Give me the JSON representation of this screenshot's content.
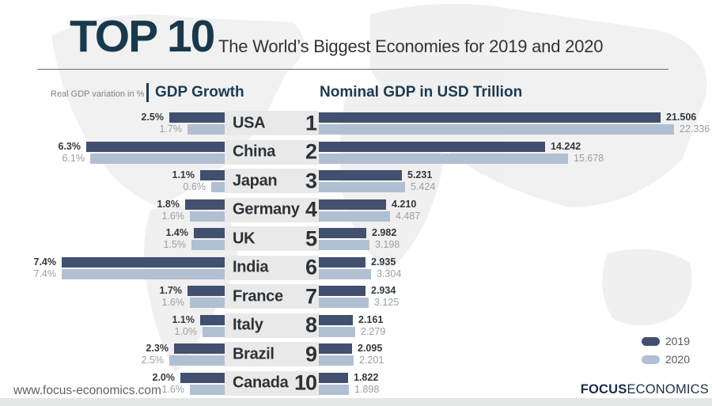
{
  "header": {
    "title": "TOP 10",
    "subtitle": "The World’s Biggest Economies for 2019 and 2020"
  },
  "panels": {
    "growth_note": "Real GDP variation in %",
    "growth_title": "GDP Growth",
    "gdp_title": "Nominal GDP in USD Trillion"
  },
  "legend": {
    "items": [
      {
        "label": "2019",
        "color": "#41506f"
      },
      {
        "label": "2020",
        "color": "#b1bfd3"
      }
    ]
  },
  "footer": {
    "website": "www.focus-economics.com",
    "logo_bold": "FOCUS",
    "logo_light": "ECONOMICS"
  },
  "colors": {
    "bar_2019": "#41506f",
    "bar_2020": "#b1bfd3",
    "title_navy": "#17394b",
    "section_header": "#1d3b50",
    "row_stripe": "#e9e9e9",
    "value_2019": "#33383d",
    "value_2020": "#9aa0a6"
  },
  "chart_data": {
    "type": "bar",
    "title": "TOP 10 — The World’s Biggest Economies for 2019 and 2020",
    "panels": [
      {
        "name": "GDP Growth",
        "unit": "Real GDP variation in %",
        "orientation": "horizontal, right-aligned"
      },
      {
        "name": "Nominal GDP in USD Trillion",
        "unit": "USD trillion",
        "orientation": "horizontal, left-aligned"
      }
    ],
    "series_names": [
      "2019",
      "2020"
    ],
    "legend_position": "bottom-right",
    "grid": false,
    "rows": [
      {
        "rank": "1",
        "country": "USA",
        "growth_2019": 2.5,
        "growth_2019_label": "2.5%",
        "growth_2020": 1.7,
        "growth_2020_label": "1.7%",
        "gdp_2019": 21.506,
        "gdp_2019_label": "21.506",
        "gdp_2020": 22.336,
        "gdp_2020_label": "22.336"
      },
      {
        "rank": "2",
        "country": "China",
        "growth_2019": 6.3,
        "growth_2019_label": "6.3%",
        "growth_2020": 6.1,
        "growth_2020_label": "6.1%",
        "gdp_2019": 14.242,
        "gdp_2019_label": "14.242",
        "gdp_2020": 15.678,
        "gdp_2020_label": "15.678"
      },
      {
        "rank": "3",
        "country": "Japan",
        "growth_2019": 1.1,
        "growth_2019_label": "1.1%",
        "growth_2020": 0.6,
        "growth_2020_label": "0.6%",
        "gdp_2019": 5.231,
        "gdp_2019_label": "5.231",
        "gdp_2020": 5.424,
        "gdp_2020_label": "5.424"
      },
      {
        "rank": "4",
        "country": "Germany",
        "growth_2019": 1.8,
        "growth_2019_label": "1.8%",
        "growth_2020": 1.6,
        "growth_2020_label": "1.6%",
        "gdp_2019": 4.21,
        "gdp_2019_label": "4.210",
        "gdp_2020": 4.487,
        "gdp_2020_label": "4.487"
      },
      {
        "rank": "5",
        "country": "UK",
        "growth_2019": 1.4,
        "growth_2019_label": "1.4%",
        "growth_2020": 1.5,
        "growth_2020_label": "1.5%",
        "gdp_2019": 2.982,
        "gdp_2019_label": "2.982",
        "gdp_2020": 3.198,
        "gdp_2020_label": "3.198"
      },
      {
        "rank": "6",
        "country": "India",
        "growth_2019": 7.4,
        "growth_2019_label": "7.4%",
        "growth_2020": 7.4,
        "growth_2020_label": "7.4%",
        "gdp_2019": 2.935,
        "gdp_2019_label": "2.935",
        "gdp_2020": 3.304,
        "gdp_2020_label": "3.304"
      },
      {
        "rank": "7",
        "country": "France",
        "growth_2019": 1.7,
        "growth_2019_label": "1.7%",
        "growth_2020": 1.6,
        "growth_2020_label": "1.6%",
        "gdp_2019": 2.934,
        "gdp_2019_label": "2.934",
        "gdp_2020": 3.125,
        "gdp_2020_label": "3.125"
      },
      {
        "rank": "8",
        "country": "Italy",
        "growth_2019": 1.1,
        "growth_2019_label": "1.1%",
        "growth_2020": 1.0,
        "growth_2020_label": "1.0%",
        "gdp_2019": 2.161,
        "gdp_2019_label": "2.161",
        "gdp_2020": 2.279,
        "gdp_2020_label": "2.279"
      },
      {
        "rank": "9",
        "country": "Brazil",
        "growth_2019": 2.3,
        "growth_2019_label": "2.3%",
        "growth_2020": 2.5,
        "growth_2020_label": "2.5%",
        "gdp_2019": 2.095,
        "gdp_2019_label": "2.095",
        "gdp_2020": 2.201,
        "gdp_2020_label": "2.201"
      },
      {
        "rank": "10",
        "country": "Canada",
        "growth_2019": 2.0,
        "growth_2019_label": "2.0%",
        "growth_2020": 1.6,
        "growth_2020_label": "1.6%",
        "gdp_2019": 1.822,
        "gdp_2019_label": "1.822",
        "gdp_2020": 1.898,
        "gdp_2020_label": "1.898"
      }
    ]
  }
}
